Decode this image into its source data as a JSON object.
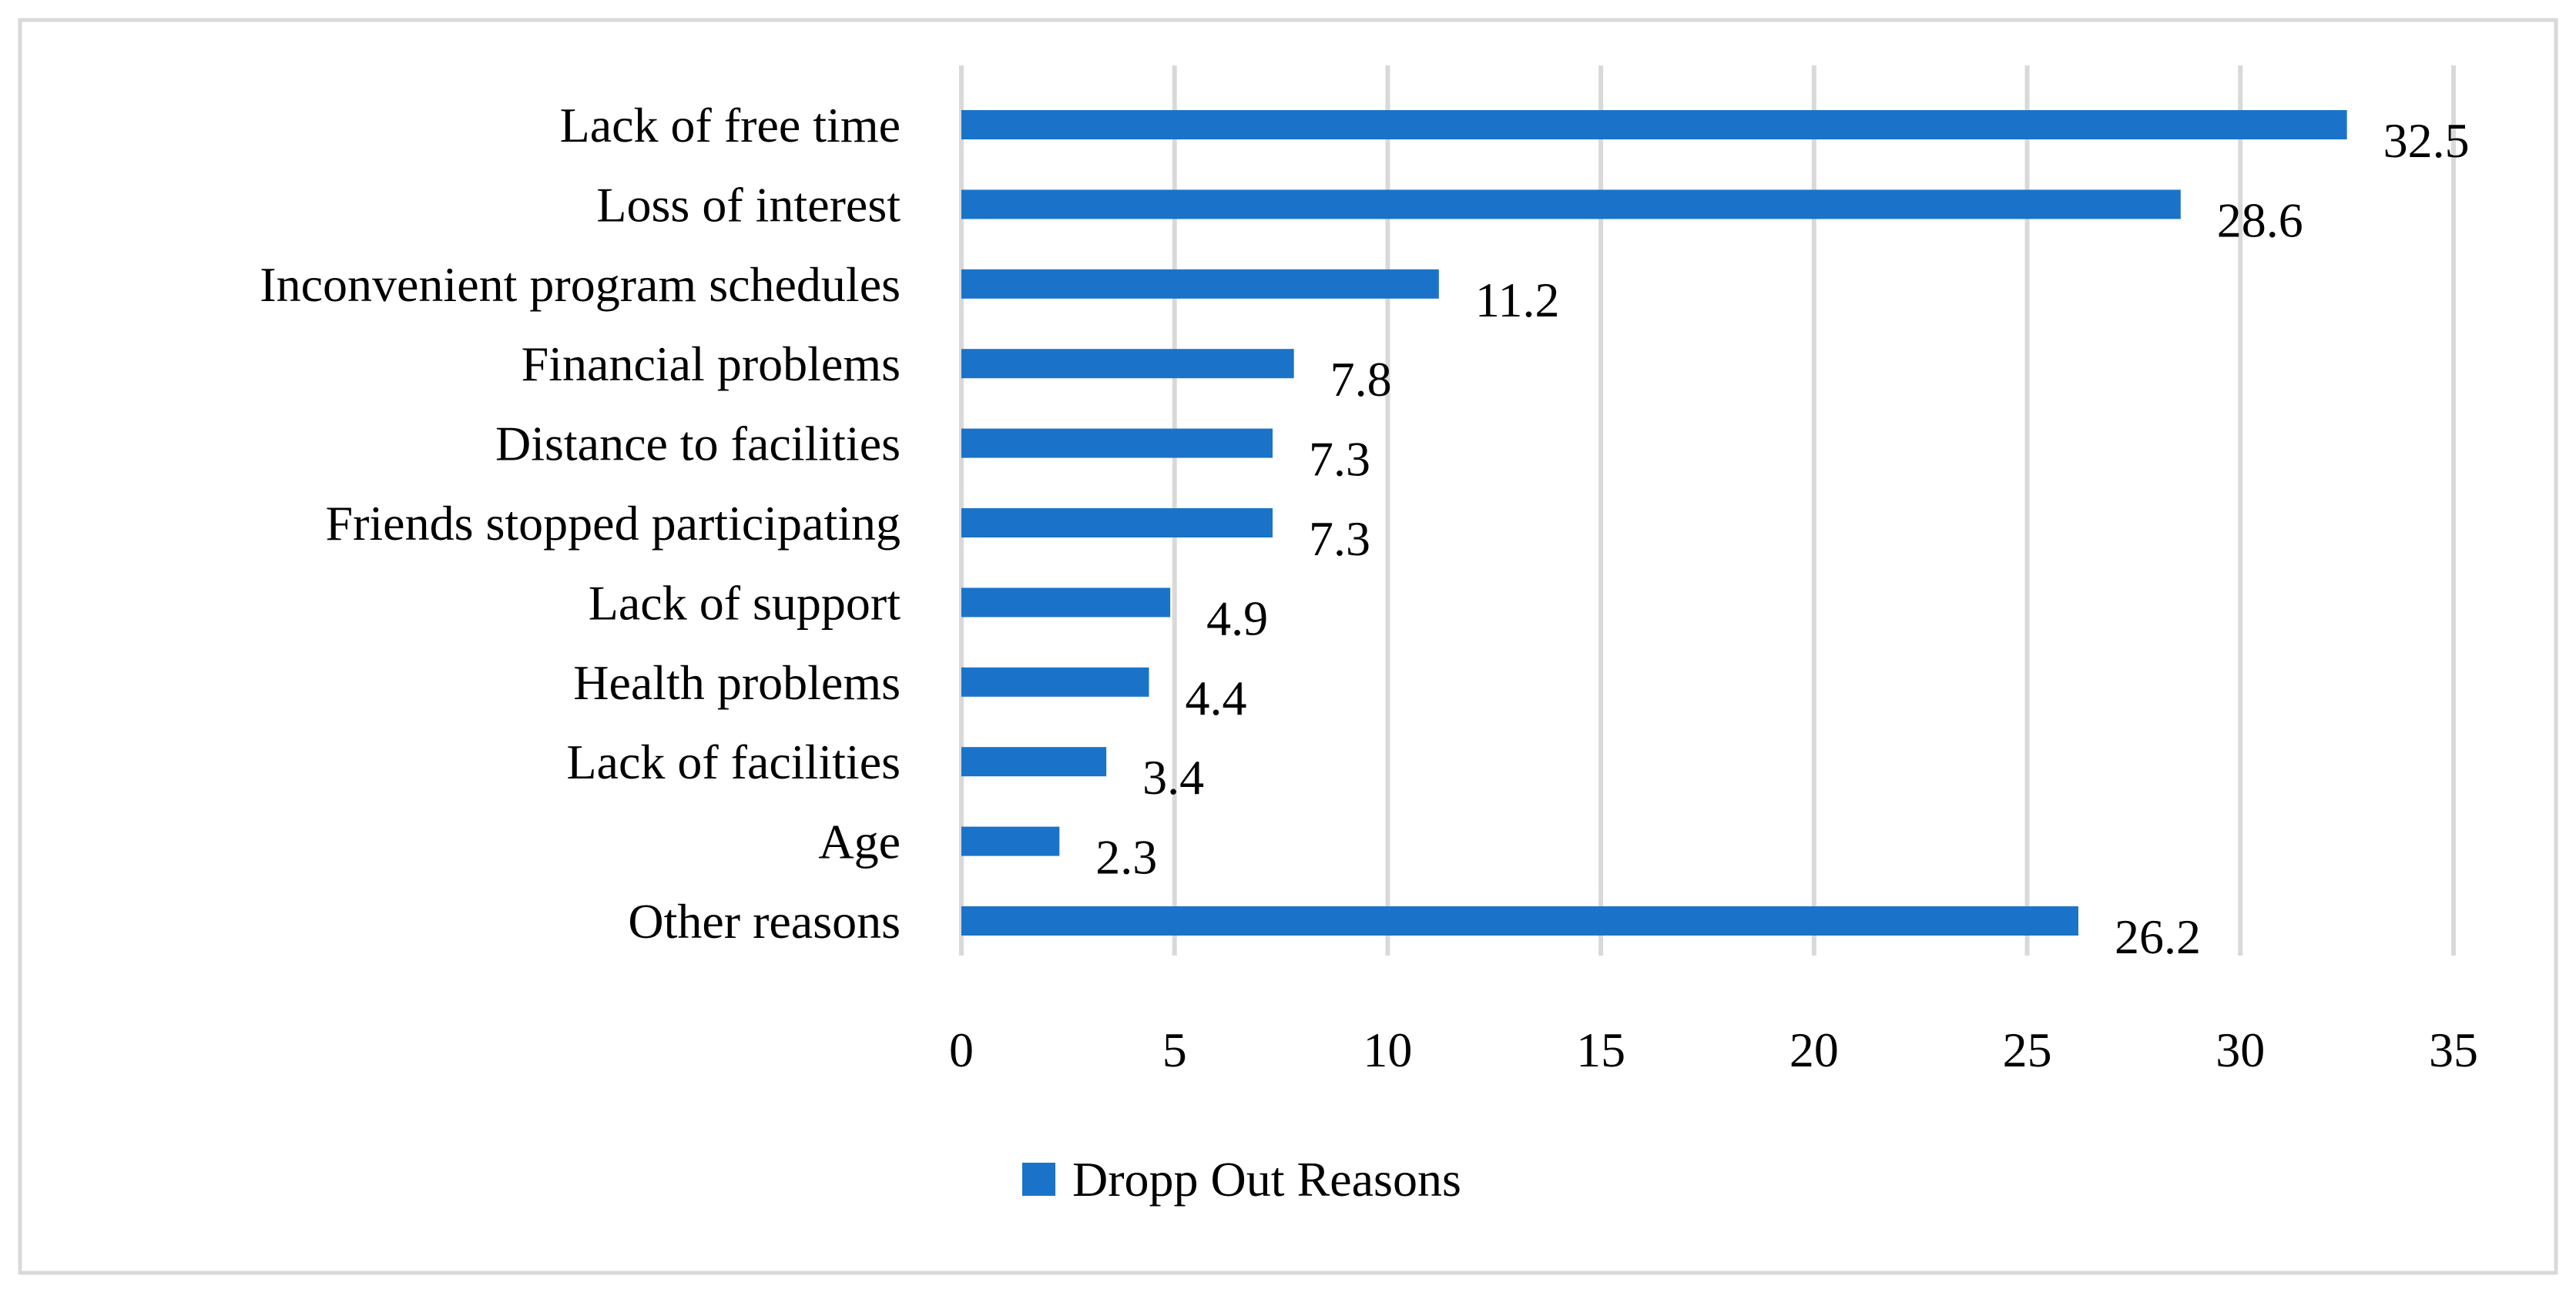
{
  "chart_data": {
    "type": "bar",
    "orientation": "horizontal",
    "title": "",
    "xlabel": "",
    "ylabel": "",
    "categories": [
      "Lack of free time",
      "Loss of interest",
      "Inconvenient program schedules",
      "Financial problems",
      "Distance to facilities",
      "Friends stopped participating",
      "Lack of support",
      "Health problems",
      "Lack of facilities",
      "Age",
      "Other reasons"
    ],
    "series": [
      {
        "name": "Dropp Out Reasons",
        "color": "#1a73c8",
        "values": [
          32.5,
          28.6,
          11.2,
          7.8,
          7.3,
          7.3,
          4.9,
          4.4,
          3.4,
          2.3,
          26.2
        ],
        "labels": [
          "32.5",
          "28.6",
          "11.2",
          "7.8",
          "7.3",
          "7.3",
          "4.9",
          "4.4",
          "3.4",
          "2.3",
          "26.2"
        ]
      }
    ],
    "xlim": [
      0,
      35
    ],
    "xticks": [
      "0",
      "5",
      "10",
      "15",
      "20",
      "25",
      "30",
      "35"
    ],
    "grid": true,
    "legend_position": "bottom",
    "legend": [
      "Dropp Out Reasons"
    ],
    "gridColor": "#d9d9d9"
  }
}
